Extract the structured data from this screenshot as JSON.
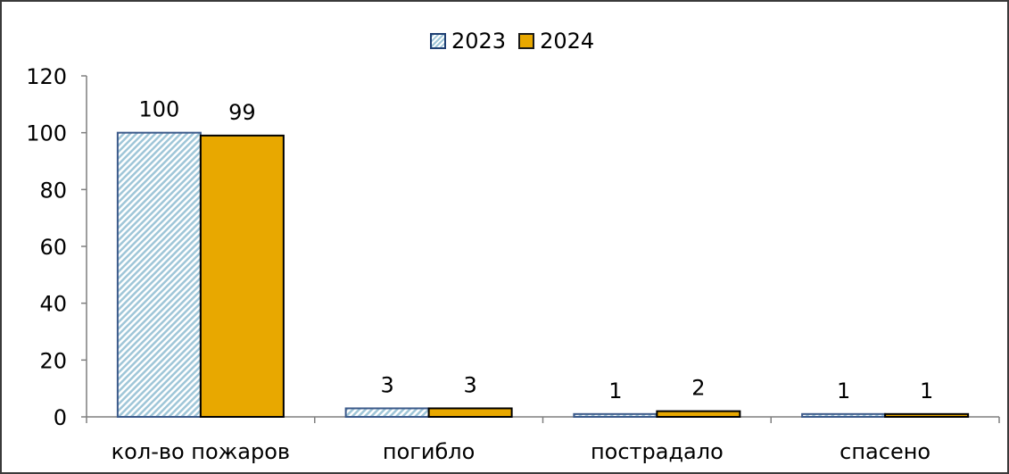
{
  "chart_data": {
    "type": "bar",
    "categories": [
      "кол-во пожаров",
      "погибло",
      "пострадало",
      "спасено"
    ],
    "series": [
      {
        "name": "2023",
        "values": [
          100,
          3,
          1,
          1
        ],
        "color": "#9fc6d8",
        "pattern": "diagonal-hatch"
      },
      {
        "name": "2024",
        "values": [
          99,
          3,
          2,
          1
        ],
        "color": "#e8a800",
        "pattern": "solid"
      }
    ],
    "y_ticks": [
      "0",
      "20",
      "40",
      "60",
      "80",
      "100",
      "120"
    ],
    "ylim": [
      0,
      120
    ],
    "legend_position": "top-center",
    "grid": false
  }
}
